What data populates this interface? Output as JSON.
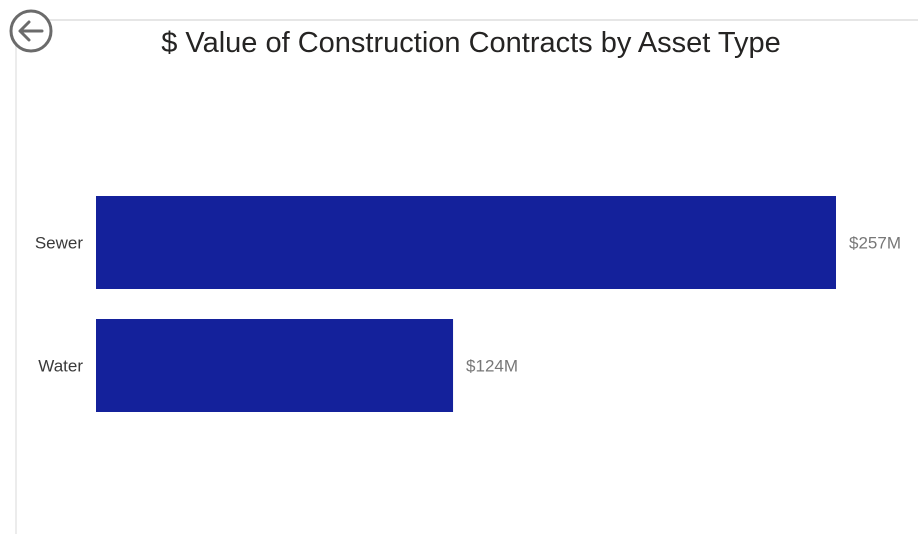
{
  "back_button": {
    "icon": "back-arrow-icon"
  },
  "chart_data": {
    "type": "bar",
    "orientation": "horizontal",
    "title": "$ Value of Construction Contracts by Asset Type",
    "categories": [
      "Sewer",
      "Water"
    ],
    "values": [
      257,
      124
    ],
    "data_labels": [
      "$257M",
      "$124M"
    ],
    "unit": "$M",
    "xlim": [
      0,
      257
    ],
    "bar_color": "#14219b",
    "grid": false,
    "legend": "none"
  }
}
